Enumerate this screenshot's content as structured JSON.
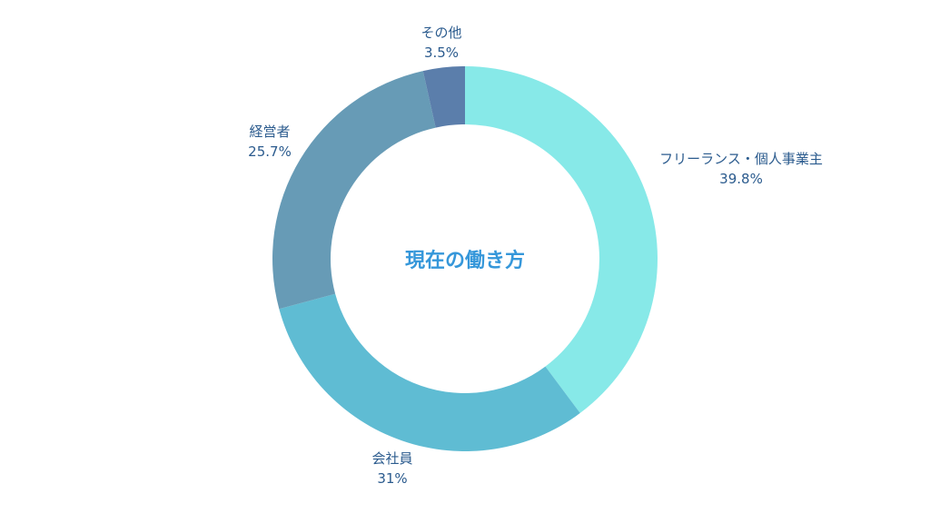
{
  "chart_data": {
    "type": "pie",
    "donut": true,
    "title": "現在の働き方",
    "start": "top",
    "direction": "clockwise",
    "slices": [
      {
        "label": "フリーランス・個人事業主",
        "value": 39.8,
        "value_label": "39.8%",
        "color": "#87e9e8"
      },
      {
        "label": "会社員",
        "value": 31,
        "value_label": "31%",
        "color": "#5fbcd3"
      },
      {
        "label": "経営者",
        "value": 25.7,
        "value_label": "25.7%",
        "color": "#679bb6"
      },
      {
        "label": "その他",
        "value": 3.5,
        "value_label": "3.5%",
        "color": "#5b7eab"
      }
    ],
    "label_color": "#2b5b8e",
    "title_color": "#3597da"
  }
}
